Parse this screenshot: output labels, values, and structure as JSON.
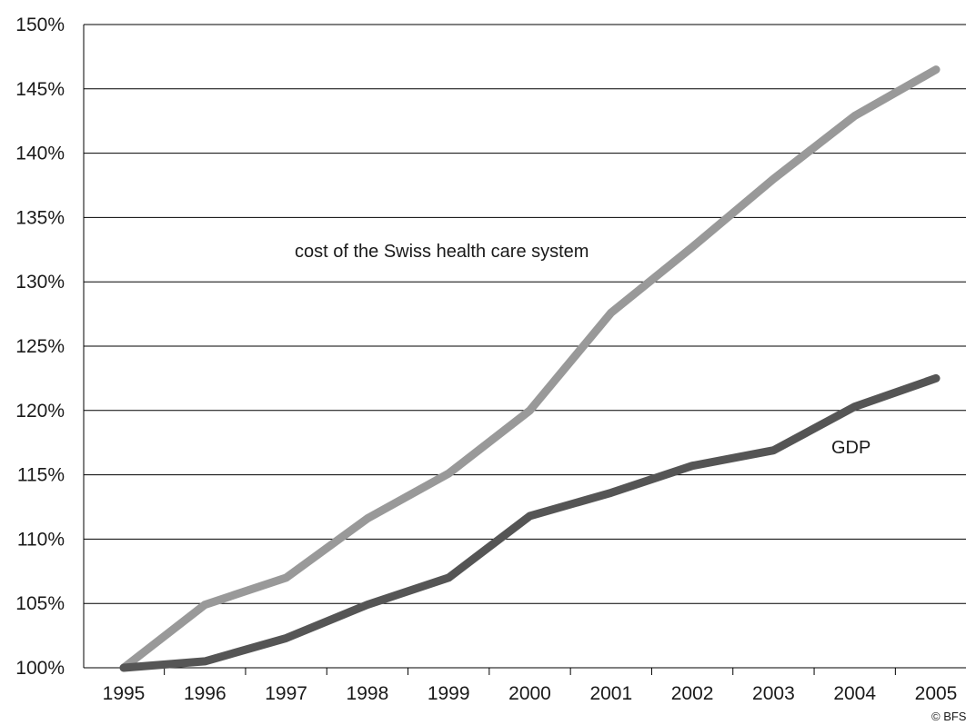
{
  "chart_data": {
    "type": "line",
    "x": [
      "1995",
      "1996",
      "1997",
      "1998",
      "1999",
      "2000",
      "2001",
      "2002",
      "2003",
      "2004",
      "2005"
    ],
    "series": [
      {
        "name": "cost of the Swiss health care system",
        "color": "#999999",
        "values": [
          100,
          104.9,
          107,
          111.6,
          115.1,
          120,
          127.6,
          132.7,
          138,
          142.9,
          146.5
        ]
      },
      {
        "name": "GDP",
        "color": "#555555",
        "values": [
          100,
          100.5,
          102.3,
          104.9,
          107,
          111.8,
          113.6,
          115.7,
          116.9,
          120.3,
          122.5
        ]
      }
    ],
    "ylim": [
      100,
      150
    ],
    "yticks": [
      "100%",
      "105%",
      "110%",
      "115%",
      "120%",
      "125%",
      "130%",
      "135%",
      "140%",
      "145%",
      "150%"
    ],
    "grid": "horizontal",
    "credit": "© BFS"
  }
}
